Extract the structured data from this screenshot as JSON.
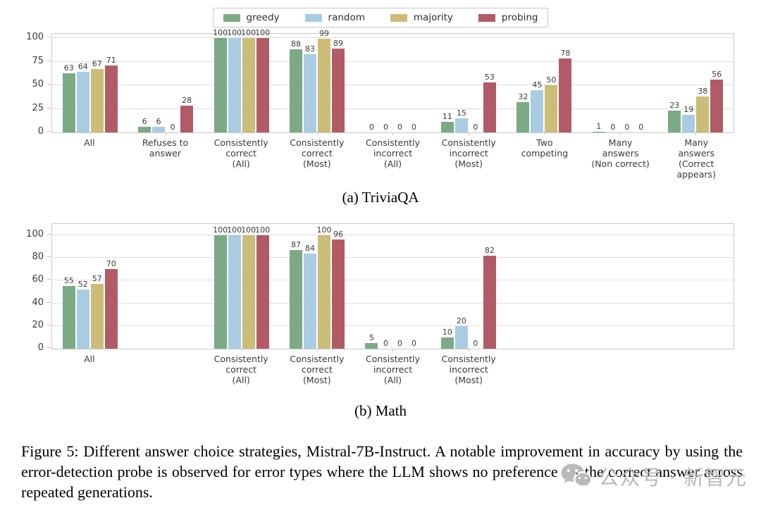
{
  "colors": {
    "greedy": "#7caa85",
    "random": "#a9cce2",
    "majority": "#cbbd77",
    "probing": "#b15b66",
    "grid": "#dedede",
    "border": "#c9c9c9",
    "text": "#3a3a3a",
    "watermark": "#b9b9b9"
  },
  "legend": {
    "items": [
      {
        "label": "greedy",
        "color_key": "greedy"
      },
      {
        "label": "random",
        "color_key": "random"
      },
      {
        "label": "majority",
        "color_key": "majority"
      },
      {
        "label": "probing",
        "color_key": "probing"
      }
    ]
  },
  "chart_data": [
    {
      "type": "bar",
      "title": "(a) TriviaQA",
      "slots": 9,
      "slot_index": [
        0,
        1,
        2,
        3,
        4,
        5,
        6,
        7,
        8
      ],
      "categories": [
        "All",
        "Refuses to\nanswer",
        "Consistently\ncorrect\n(All)",
        "Consistently\ncorrect\n(Most)",
        "Consistently\nincorrect\n(All)",
        "Consistently\nincorrect\n(Most)",
        "Two\ncompeting",
        "Many\nanswers\n(Non correct)",
        "Many\nanswers\n(Correct appears)"
      ],
      "series": [
        {
          "name": "greedy",
          "values": [
            63,
            6,
            100,
            88,
            0,
            11,
            32,
            1,
            23
          ]
        },
        {
          "name": "random",
          "values": [
            64,
            6,
            100,
            83,
            0,
            15,
            45,
            0,
            19
          ]
        },
        {
          "name": "majority",
          "values": [
            67,
            0,
            100,
            99,
            0,
            0,
            50,
            0,
            38
          ]
        },
        {
          "name": "probing",
          "values": [
            71,
            28,
            100,
            89,
            0,
            53,
            78,
            0,
            56
          ]
        }
      ],
      "ylim": [
        0,
        100
      ],
      "yticks": [
        0,
        25,
        50,
        75,
        100
      ],
      "grid": true,
      "legend_position": "top-center"
    },
    {
      "type": "bar",
      "title": "(b) Math",
      "slots": 9,
      "slot_index": [
        0,
        2,
        3,
        4,
        5
      ],
      "categories": [
        "All",
        "Consistently\ncorrect\n(All)",
        "Consistently\ncorrect\n(Most)",
        "Consistently\nincorrect\n(All)",
        "Consistently\nincorrect\n(Most)"
      ],
      "series": [
        {
          "name": "greedy",
          "values": [
            55,
            100,
            87,
            5,
            10
          ]
        },
        {
          "name": "random",
          "values": [
            52,
            100,
            84,
            0,
            20
          ]
        },
        {
          "name": "majority",
          "values": [
            57,
            100,
            100,
            0,
            0
          ]
        },
        {
          "name": "probing",
          "values": [
            70,
            100,
            96,
            0,
            82
          ]
        }
      ],
      "ylim": [
        0,
        100
      ],
      "yticks": [
        0,
        20,
        40,
        60,
        80,
        100
      ],
      "grid": true,
      "legend_position": "none"
    }
  ],
  "caption": {
    "text": "Figure 5: Different answer choice strategies, Mistral-7B-Instruct.  A notable improvement in accuracy by using the error-detection probe is observed for error types where the LLM shows no preference for the correct answer across repeated generations."
  },
  "watermark": {
    "icon": "wechat-icon",
    "text": "公众号 · 新智元"
  }
}
